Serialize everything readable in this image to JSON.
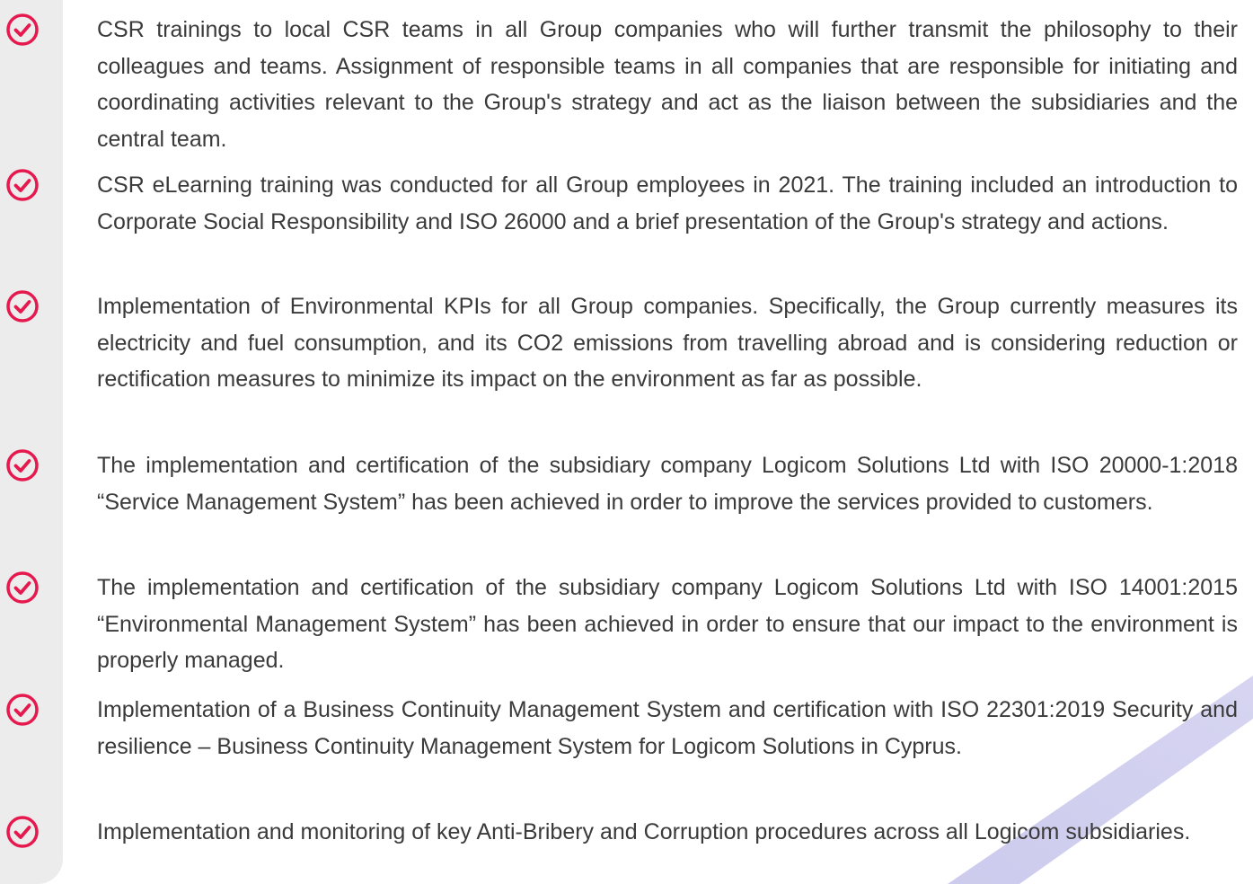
{
  "items": [
    "CSR trainings to local CSR teams in all Group companies who will further transmit the philosophy to their colleagues and teams. Assignment of responsible teams in all companies that are responsible for initiating and coordinating activities relevant to the Group's strategy and act as the liaison between the subsidiaries and the central team.",
    "CSR eLearning training was conducted for all Group employees in 2021. The training included an introduction to Corporate Social Responsibility and ISO 26000 and a brief presentation of the Group's strategy and actions.",
    "Implementation of Environmental KPIs for all Group companies. Specifically, the Group currently measures its electricity and fuel consumption, and its CO2 emissions from travelling abroad and is considering reduction or rectification measures to minimize its impact on the environment as far as possible.",
    "The implementation and certification of the subsidiary company Logicom Solutions Ltd with ISO 20000-1:2018 “Service Management System” has been achieved in order to improve the services provided to customers.",
    "The implementation and certification of the subsidiary company Logicom Solutions Ltd with ISO 14001:2015 “Environmental Management System” has been achieved in order to ensure that our impact to the environment is properly managed.",
    "Implementation of a Business Continuity Management System and certification with ISO 22301:2019 Security and resilience – Business Continuity Management System for Logicom Solutions in Cyprus.",
    "Implementation and monitoring of key Anti-Bribery and Corruption procedures across all Logicom subsidiaries."
  ]
}
